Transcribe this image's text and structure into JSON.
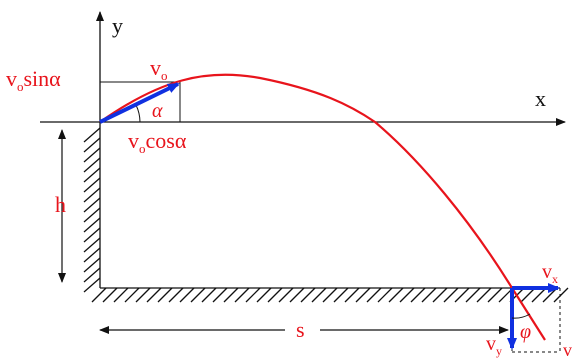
{
  "labels": {
    "y_axis": "y",
    "x_axis": "x",
    "v0_sin": "v",
    "v0_sin_sub": "o",
    "v0_sin_tail": "sinα",
    "v0": "v",
    "v0_sub": "o",
    "alpha": "α",
    "v0_cos": "v",
    "v0_cos_sub": "o",
    "v0_cos_tail": "cosα",
    "h": "h",
    "s": "s",
    "vx": "v",
    "vx_sub": "x",
    "vy": "v",
    "vy_sub": "y",
    "phi": "φ",
    "v": "v"
  },
  "colors": {
    "trajectory": "#e8141c",
    "vector": "#1030e0",
    "text": "#e8141c",
    "axes": "#111111",
    "hatch": "#111111"
  }
}
